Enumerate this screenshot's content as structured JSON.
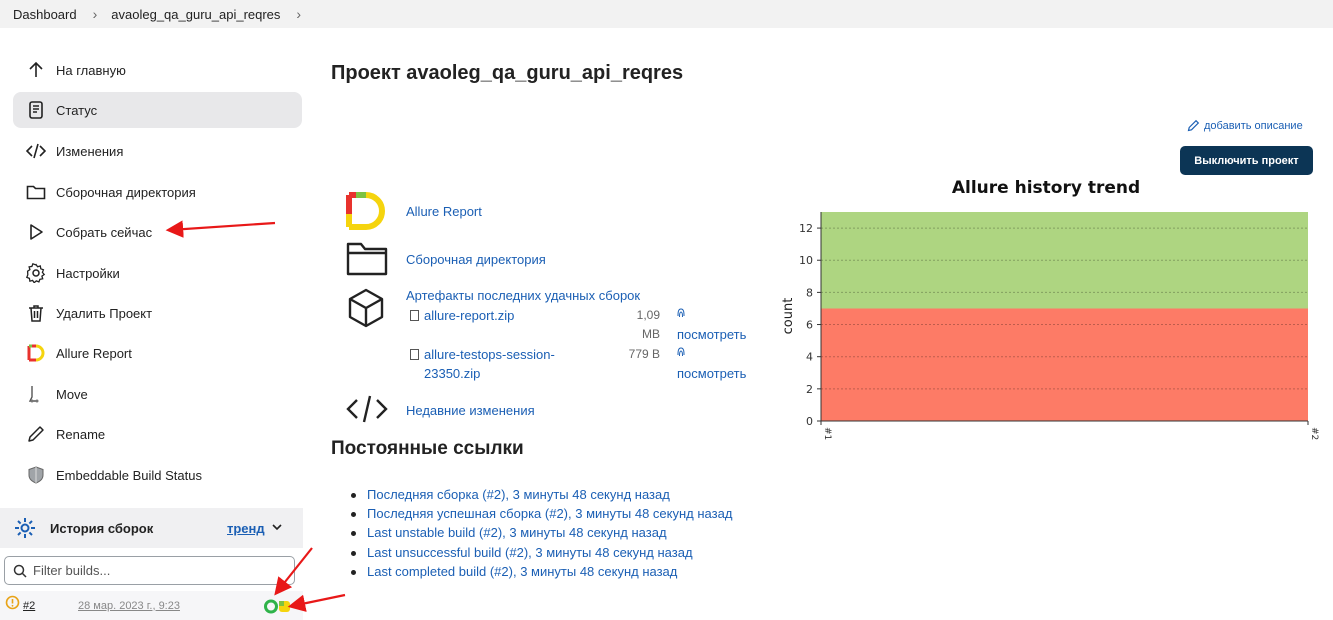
{
  "breadcrumb": [
    "Dashboard",
    "avaoleg_qa_guru_api_reqres"
  ],
  "sidebar": {
    "items": [
      {
        "label": "На главную",
        "icon": "arrow-up-icon"
      },
      {
        "label": "Статус",
        "icon": "document-icon"
      },
      {
        "label": "Изменения",
        "icon": "code-icon"
      },
      {
        "label": "Сборочная директория",
        "icon": "folder-icon"
      },
      {
        "label": "Собрать сейчас",
        "icon": "play-icon"
      },
      {
        "label": "Настройки",
        "icon": "gear-icon"
      },
      {
        "label": "Удалить Проект",
        "icon": "trash-icon"
      },
      {
        "label": "Allure Report",
        "icon": "allure-icon"
      },
      {
        "label": "Move",
        "icon": "move-icon"
      },
      {
        "label": "Rename",
        "icon": "pencil-icon"
      },
      {
        "label": "Embeddable Build Status",
        "icon": "shield-icon"
      }
    ],
    "active_index": 1
  },
  "history": {
    "title": "История сборок",
    "trend": "тренд",
    "filter_placeholder": "Filter builds...",
    "builds": [
      {
        "number": "#2",
        "date": "28 мар. 2023 г., 9:23",
        "status": "unstable"
      }
    ]
  },
  "main": {
    "title": "Проект avaoleg_qa_guru_api_reqres",
    "add_description": "добавить описание",
    "disable_button": "Выключить проект",
    "links": {
      "allure_report": "Allure Report",
      "workspace": "Сборочная директория",
      "artifacts_title": "Артефакты последних удачных сборок",
      "recent_changes": "Недавние изменения"
    },
    "artifacts": [
      {
        "name_line1": "allure-report.zip",
        "name_line2": "",
        "size_line1": "1,09",
        "size_line2": "MB",
        "view": "посмотреть"
      },
      {
        "name_line1": "allure-testops-session-",
        "name_line2": "23350.zip",
        "size_line1": "779 B",
        "size_line2": "",
        "view": "посмотреть"
      }
    ],
    "permalinks_title": "Постоянные ссылки",
    "permalinks": [
      "Последняя сборка (#2), 3 минуты 48 секунд назад",
      "Последняя успешная сборка (#2), 3 минуты 48 секунд назад",
      "Last unstable build (#2), 3 минуты 48 секунд назад",
      "Last unsuccessful build (#2), 3 минуты 48 секунд назад",
      "Last completed build (#2), 3 минуты 48 секунд назад"
    ]
  },
  "chart_data": {
    "type": "area",
    "title": "Allure history trend",
    "ylabel": "count",
    "xlabel": "",
    "x": [
      "#1",
      "#2"
    ],
    "ylim": [
      0,
      13
    ],
    "yticks": [
      0,
      2,
      4,
      6,
      8,
      10,
      12
    ],
    "series": [
      {
        "values": [
          7,
          7
        ],
        "color": "#fd7b66"
      },
      {
        "values": [
          6,
          6
        ],
        "color": "#aed581"
      }
    ],
    "stacked": true,
    "grid": true
  },
  "colors": {
    "accent": "#0c3555",
    "link": "#1b5fb4",
    "arrow": "#e81818"
  }
}
